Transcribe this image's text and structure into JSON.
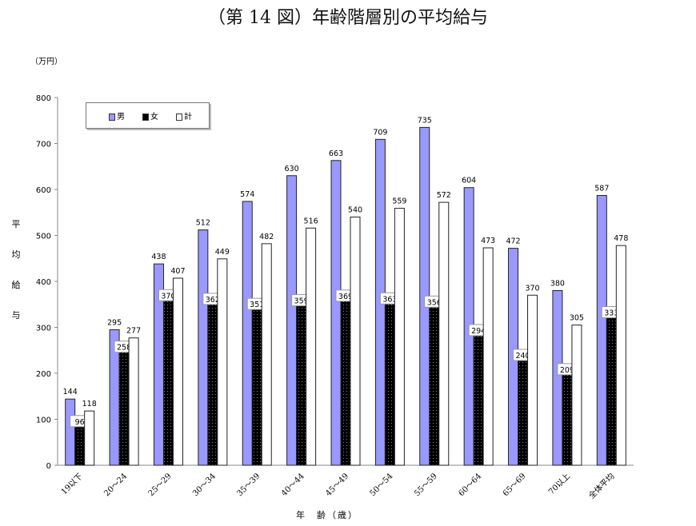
{
  "chart_data": {
    "type": "bar",
    "title": "（第 14 図）年齢階層別の平均給与",
    "unit_label": "（万円）",
    "ylabel": "平均給与",
    "xlabel": "年　齢（歳）",
    "ylim": [
      0,
      800
    ],
    "yticks": [
      "0",
      "100",
      "200",
      "300",
      "400",
      "500",
      "600",
      "700",
      "800"
    ],
    "grid": false,
    "legend_position": "top-left",
    "categories": [
      "19以下",
      "20～24",
      "25～29",
      "30～34",
      "35～39",
      "40～44",
      "45～49",
      "50～54",
      "55～59",
      "60～64",
      "65～69",
      "70以上",
      "全体平均"
    ],
    "series": [
      {
        "name": "男",
        "color": "#9999ff",
        "values": [
          144,
          295,
          438,
          512,
          574,
          630,
          663,
          709,
          735,
          604,
          472,
          380,
          587
        ]
      },
      {
        "name": "女",
        "color": "#000000",
        "values": [
          96,
          258,
          370,
          362,
          351,
          359,
          369,
          363,
          356,
          294,
          240,
          209,
          333
        ]
      },
      {
        "name": "計",
        "color": "#ffffff",
        "values": [
          118,
          277,
          407,
          449,
          482,
          516,
          540,
          559,
          572,
          473,
          370,
          305,
          478
        ]
      }
    ]
  }
}
